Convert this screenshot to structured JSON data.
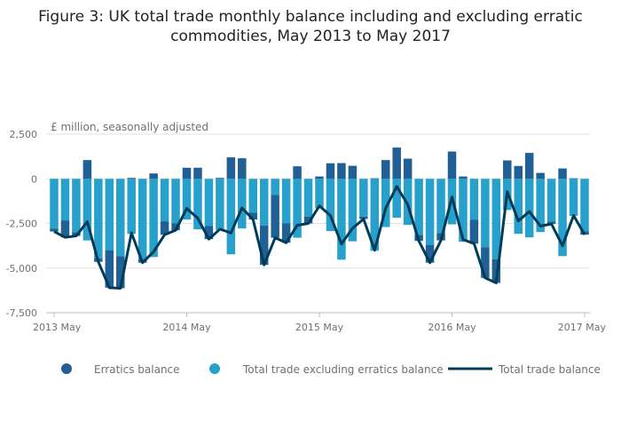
{
  "chart_data": {
    "type": "bar",
    "stacked": true,
    "title": "Figure 3: UK total trade monthly balance including and excluding erratic commodities, May 2013 to May 2017",
    "ylabel": "£ million, seasonally adjusted",
    "ylim": [
      -7500,
      2500
    ],
    "yticks": [
      2500,
      0,
      -2500,
      -5000,
      -7500
    ],
    "ytick_labels": [
      "2,500",
      "0",
      "-2,500",
      "-5,000",
      "-7,500"
    ],
    "xtick_labels": [
      "2013 May",
      "2014 May",
      "2015 May",
      "2016 May",
      "2017 May"
    ],
    "grid": true,
    "legend_position": "bottom",
    "categories": [
      "May 2013",
      "Jun 2013",
      "Jul 2013",
      "Aug 2013",
      "Sep 2013",
      "Oct 2013",
      "Nov 2013",
      "Dec 2013",
      "Jan 2014",
      "Feb 2014",
      "Mar 2014",
      "Apr 2014",
      "May 2014",
      "Jun 2014",
      "Jul 2014",
      "Aug 2014",
      "Sep 2014",
      "Oct 2014",
      "Nov 2014",
      "Dec 2014",
      "Jan 2015",
      "Feb 2015",
      "Mar 2015",
      "Apr 2015",
      "May 2015",
      "Jun 2015",
      "Jul 2015",
      "Aug 2015",
      "Sep 2015",
      "Oct 2015",
      "Nov 2015",
      "Dec 2015",
      "Jan 2016",
      "Feb 2016",
      "Mar 2016",
      "Apr 2016",
      "May 2016",
      "Jun 2016",
      "Jul 2016",
      "Aug 2016",
      "Sep 2016",
      "Oct 2016",
      "Nov 2016",
      "Dec 2016",
      "Jan 2017",
      "Feb 2017",
      "Mar 2017",
      "Apr 2017",
      "May 2017"
    ],
    "series": [
      {
        "name": "Erratics balance",
        "type": "bar",
        "color": "#206095",
        "values": [
          -150,
          -950,
          -200,
          1050,
          -200,
          -2100,
          -1800,
          50,
          -200,
          300,
          -750,
          -380,
          620,
          620,
          -730,
          50,
          1200,
          1150,
          -380,
          -2200,
          -2400,
          -1080,
          700,
          -380,
          130,
          870,
          880,
          730,
          -130,
          30,
          1050,
          1750,
          1130,
          -330,
          -1000,
          -400,
          1530,
          130,
          -1330,
          -1720,
          -1330,
          1030,
          720,
          1450,
          330,
          -130,
          580,
          30,
          -180
        ]
      },
      {
        "name": "Total trade excluding erratics balance",
        "type": "bar",
        "color": "#27a0cc",
        "values": [
          -2800,
          -2330,
          -3000,
          -3450,
          -4450,
          -4000,
          -4330,
          -3080,
          -4500,
          -4380,
          -2380,
          -2500,
          -2280,
          -2830,
          -2650,
          -2870,
          -4230,
          -2780,
          -1900,
          -2620,
          -900,
          -2500,
          -3300,
          -2120,
          -1650,
          -2930,
          -4530,
          -3500,
          -2120,
          -4030,
          -2700,
          -2180,
          -2580,
          -3150,
          -3700,
          -3050,
          -2550,
          -3530,
          -2300,
          -3830,
          -4500,
          -1750,
          -3080,
          -3280,
          -2980,
          -2400,
          -4330,
          -2080,
          -2950
        ]
      },
      {
        "name": "Total trade balance",
        "type": "line",
        "color": "#003c57",
        "values": [
          -2950,
          -3280,
          -3200,
          -2400,
          -4650,
          -6100,
          -6130,
          -3030,
          -4700,
          -4080,
          -3130,
          -2880,
          -1660,
          -2210,
          -3380,
          -2820,
          -3030,
          -1630,
          -2280,
          -4820,
          -3300,
          -3580,
          -2600,
          -2500,
          -1520,
          -2060,
          -3650,
          -2770,
          -2250,
          -4000,
          -1650,
          -430,
          -1450,
          -3480,
          -4700,
          -3450,
          -1020,
          -3400,
          -3630,
          -5550,
          -5830,
          -720,
          -2360,
          -1830,
          -2650,
          -2530,
          -3750,
          -2050,
          -3130
        ]
      }
    ]
  }
}
